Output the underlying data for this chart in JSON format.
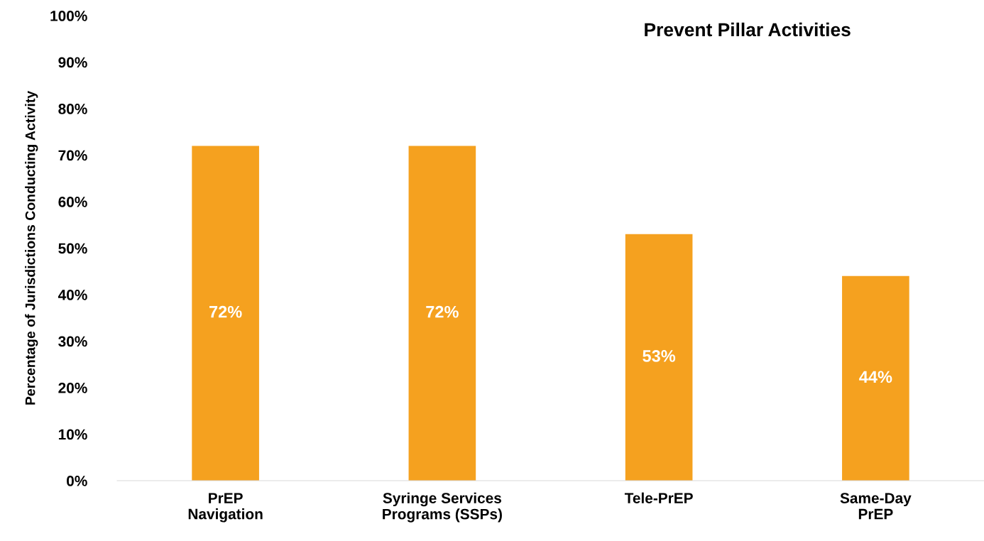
{
  "chart_data": {
    "type": "bar",
    "title": "Prevent Pillar Activities",
    "ylabel": "Percentage of Jurisdictions Conducting Activity",
    "categories": [
      "PrEP\nNavigation",
      "Syringe Services\nPrograms (SSPs)",
      "Tele-PrEP",
      "Same-Day\nPrEP"
    ],
    "values": [
      72,
      72,
      53,
      44
    ],
    "value_labels": [
      "72%",
      "72%",
      "53%",
      "44%"
    ],
    "color": "#f5a11f",
    "ylim": [
      0,
      100
    ],
    "yticks": [
      {
        "value": 0,
        "label": "0%"
      },
      {
        "value": 10,
        "label": "10%"
      },
      {
        "value": 20,
        "label": "20%"
      },
      {
        "value": 30,
        "label": "30%"
      },
      {
        "value": 40,
        "label": "40%"
      },
      {
        "value": 50,
        "label": "50%"
      },
      {
        "value": 60,
        "label": "60%"
      },
      {
        "value": 70,
        "label": "70%"
      },
      {
        "value": 80,
        "label": "80%"
      },
      {
        "value": 90,
        "label": "90%"
      },
      {
        "value": 100,
        "label": "100%"
      }
    ],
    "grid": false,
    "legend": false
  }
}
